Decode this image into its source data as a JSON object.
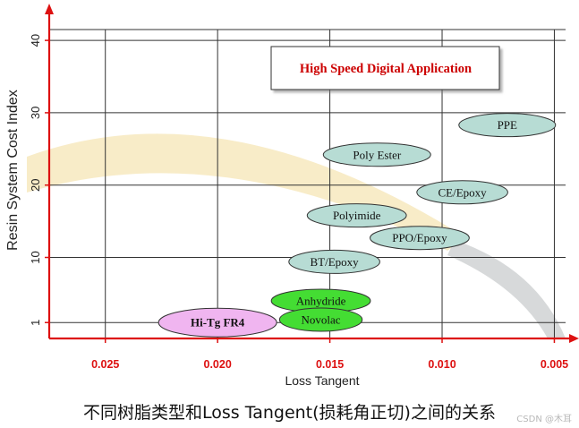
{
  "chart_data": {
    "type": "scatter",
    "title": "High Speed Digital Application",
    "xlabel": "Loss Tangent",
    "ylabel": "Resin System Cost Index",
    "x_reversed": true,
    "xlim": [
      0.0275,
      0.0045
    ],
    "ylim": [
      -1.2,
      41.5
    ],
    "x_ticks": [
      {
        "value": 0.025,
        "label": "0.025"
      },
      {
        "value": 0.02,
        "label": "0.020"
      },
      {
        "value": 0.015,
        "label": "0.015"
      },
      {
        "value": 0.01,
        "label": "0.010"
      },
      {
        "value": 0.005,
        "label": "0.005"
      }
    ],
    "y_ticks": [
      {
        "value": 1,
        "label": "1"
      },
      {
        "value": 10,
        "label": "10"
      },
      {
        "value": 20,
        "label": "20"
      },
      {
        "value": 30,
        "label": "30"
      },
      {
        "value": 40,
        "label": "40"
      }
    ],
    "grid": true,
    "colors": {
      "axis": "#dd1111",
      "tick_label": "#dd1111",
      "grid": "#333333",
      "teal_fill": "#b7dcd4",
      "green_fill": "#44dd33",
      "pink_fill": "#f0b5f0",
      "title_text": "#cc0000",
      "band_fill": "#f5e6b5",
      "gray_band": "#c9cccd"
    },
    "points": [
      {
        "label": "PPE",
        "x": 0.0071,
        "y": 28.3,
        "color": "teal"
      },
      {
        "label": "Poly Ester",
        "x": 0.0129,
        "y": 24.2,
        "color": "teal"
      },
      {
        "label": "CE/Epoxy",
        "x": 0.0091,
        "y": 19.0,
        "color": "teal"
      },
      {
        "label": "Polyimide",
        "x": 0.0138,
        "y": 15.8,
        "color": "teal"
      },
      {
        "label": "PPO/Epoxy",
        "x": 0.011,
        "y": 12.7,
        "color": "teal"
      },
      {
        "label": "BT/Epoxy",
        "x": 0.0148,
        "y": 9.4,
        "color": "teal"
      },
      {
        "label": "Anhydride",
        "x": 0.0154,
        "y": 4.0,
        "color": "green"
      },
      {
        "label": "Novolac",
        "x": 0.0154,
        "y": 1.4,
        "color": "green"
      },
      {
        "label": "Hi-Tg FR4",
        "x": 0.02,
        "y": 1.0,
        "color": "pink"
      }
    ]
  },
  "caption": "不同树脂类型和Loss Tangent(损耗角正切)之间的关系",
  "watermark": "CSDN @木耳"
}
